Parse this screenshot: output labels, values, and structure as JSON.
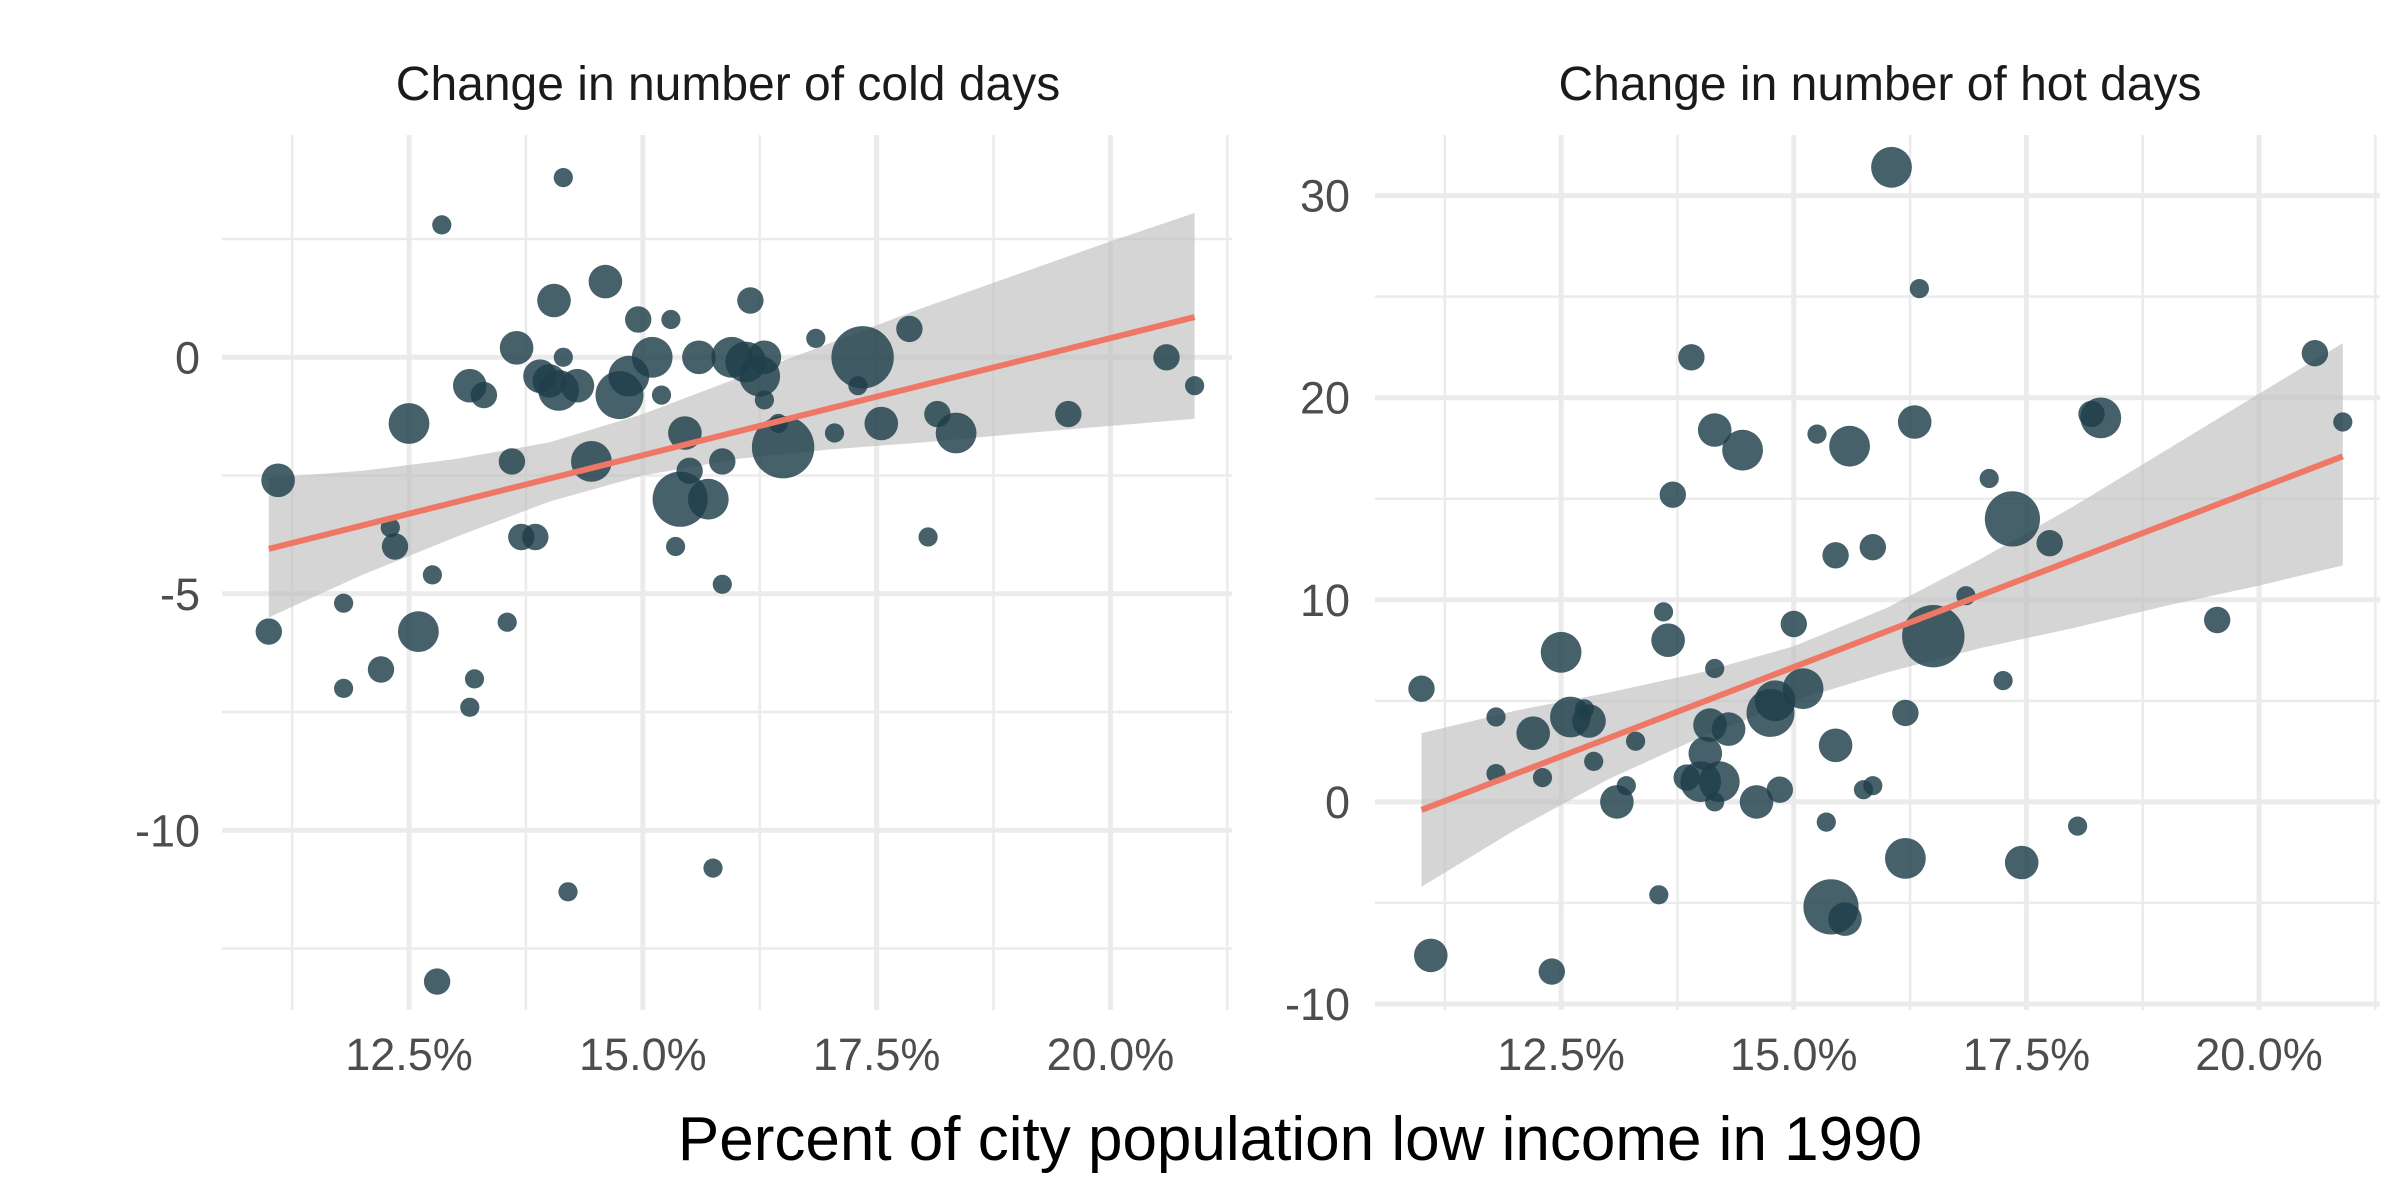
{
  "chart_data": {
    "type": "scatter",
    "xlabel": "Percent of city population low income in 1990",
    "colors": {
      "points": "#1f3e4b",
      "trend": "#ee7766",
      "band": "#bfbfbf"
    },
    "panels": [
      {
        "title": "Change in number of cold days",
        "xlim": [
          10.5,
          21.3
        ],
        "ylim": [
          -13.8,
          4.7
        ],
        "xticks": [
          12.5,
          15.0,
          17.5,
          20.0
        ],
        "xtick_labels": [
          "12.5%",
          "15.0%",
          "17.5%",
          "20.0%"
        ],
        "yticks": [
          0,
          -5,
          -10
        ],
        "ytick_labels": [
          "0",
          "-5",
          "-10"
        ],
        "trend": {
          "x": [
            11.0,
            20.9
          ],
          "y": [
            -4.05,
            0.85
          ]
        },
        "band": {
          "x": [
            11.0,
            12.0,
            13.0,
            14.0,
            15.0,
            16.0,
            17.0,
            18.0,
            19.0,
            20.0,
            20.9
          ],
          "lower": [
            -5.5,
            -4.6,
            -3.8,
            -3.05,
            -2.5,
            -2.15,
            -1.95,
            -1.8,
            -1.62,
            -1.45,
            -1.3
          ],
          "upper": [
            -2.55,
            -2.4,
            -2.15,
            -1.8,
            -1.2,
            -0.45,
            0.3,
            1.05,
            1.75,
            2.45,
            3.05
          ]
        },
        "points": [
          {
            "x": 11.0,
            "y": -5.8,
            "s": 2
          },
          {
            "x": 11.1,
            "y": -2.6,
            "s": 3
          },
          {
            "x": 11.8,
            "y": -5.2,
            "s": 1
          },
          {
            "x": 11.8,
            "y": -7.0,
            "s": 1
          },
          {
            "x": 12.2,
            "y": -6.6,
            "s": 2
          },
          {
            "x": 12.3,
            "y": -3.6,
            "s": 1
          },
          {
            "x": 12.35,
            "y": -4.0,
            "s": 2
          },
          {
            "x": 12.5,
            "y": -1.4,
            "s": 4
          },
          {
            "x": 12.6,
            "y": -5.8,
            "s": 4
          },
          {
            "x": 12.75,
            "y": -4.6,
            "s": 1
          },
          {
            "x": 12.8,
            "y": -13.2,
            "s": 2
          },
          {
            "x": 12.85,
            "y": 2.8,
            "s": 1
          },
          {
            "x": 13.15,
            "y": -0.6,
            "s": 3
          },
          {
            "x": 13.3,
            "y": -0.8,
            "s": 2
          },
          {
            "x": 13.2,
            "y": -6.8,
            "s": 1
          },
          {
            "x": 13.15,
            "y": -7.4,
            "s": 1
          },
          {
            "x": 13.55,
            "y": -5.6,
            "s": 1
          },
          {
            "x": 13.6,
            "y": -2.2,
            "s": 2
          },
          {
            "x": 13.65,
            "y": 0.2,
            "s": 3
          },
          {
            "x": 13.7,
            "y": -3.8,
            "s": 2
          },
          {
            "x": 13.85,
            "y": -3.8,
            "s": 2
          },
          {
            "x": 13.9,
            "y": -0.4,
            "s": 3
          },
          {
            "x": 14.0,
            "y": -0.5,
            "s": 3
          },
          {
            "x": 14.05,
            "y": 1.2,
            "s": 3
          },
          {
            "x": 14.1,
            "y": -0.7,
            "s": 4
          },
          {
            "x": 14.15,
            "y": 3.8,
            "s": 1
          },
          {
            "x": 14.15,
            "y": 0.0,
            "s": 1
          },
          {
            "x": 14.2,
            "y": -11.3,
            "s": 1
          },
          {
            "x": 14.3,
            "y": -0.6,
            "s": 3
          },
          {
            "x": 14.45,
            "y": -2.2,
            "s": 4
          },
          {
            "x": 14.6,
            "y": 1.6,
            "s": 3
          },
          {
            "x": 14.75,
            "y": -0.8,
            "s": 5
          },
          {
            "x": 14.85,
            "y": -0.4,
            "s": 4
          },
          {
            "x": 14.95,
            "y": 0.8,
            "s": 2
          },
          {
            "x": 15.1,
            "y": 0.0,
            "s": 4
          },
          {
            "x": 15.2,
            "y": -0.8,
            "s": 1
          },
          {
            "x": 15.3,
            "y": 0.8,
            "s": 1
          },
          {
            "x": 15.35,
            "y": -4.0,
            "s": 1
          },
          {
            "x": 15.4,
            "y": -3.0,
            "s": 6
          },
          {
            "x": 15.45,
            "y": -1.6,
            "s": 3
          },
          {
            "x": 15.5,
            "y": -2.4,
            "s": 2
          },
          {
            "x": 15.6,
            "y": 0.0,
            "s": 3
          },
          {
            "x": 15.7,
            "y": -3.0,
            "s": 4
          },
          {
            "x": 15.75,
            "y": -10.8,
            "s": 1
          },
          {
            "x": 15.85,
            "y": -2.2,
            "s": 2
          },
          {
            "x": 15.85,
            "y": -4.8,
            "s": 1
          },
          {
            "x": 15.95,
            "y": 0.0,
            "s": 4
          },
          {
            "x": 16.1,
            "y": -0.1,
            "s": 4
          },
          {
            "x": 16.15,
            "y": 1.2,
            "s": 2
          },
          {
            "x": 16.25,
            "y": -0.4,
            "s": 4
          },
          {
            "x": 16.3,
            "y": 0.0,
            "s": 3
          },
          {
            "x": 16.3,
            "y": -0.9,
            "s": 1
          },
          {
            "x": 16.45,
            "y": -1.4,
            "s": 1
          },
          {
            "x": 16.5,
            "y": -1.9,
            "s": 7
          },
          {
            "x": 16.85,
            "y": 0.4,
            "s": 1
          },
          {
            "x": 17.05,
            "y": -1.6,
            "s": 1
          },
          {
            "x": 17.3,
            "y": -0.6,
            "s": 1
          },
          {
            "x": 17.35,
            "y": 0.0,
            "s": 7
          },
          {
            "x": 17.55,
            "y": -1.4,
            "s": 3
          },
          {
            "x": 17.85,
            "y": 0.6,
            "s": 2
          },
          {
            "x": 18.05,
            "y": -3.8,
            "s": 1
          },
          {
            "x": 18.15,
            "y": -1.2,
            "s": 2
          },
          {
            "x": 18.35,
            "y": -1.6,
            "s": 4
          },
          {
            "x": 19.55,
            "y": -1.2,
            "s": 2
          },
          {
            "x": 20.6,
            "y": 0.0,
            "s": 2
          },
          {
            "x": 20.9,
            "y": -0.6,
            "s": 1
          }
        ]
      },
      {
        "title": "Change in number of hot days",
        "xlim": [
          10.5,
          21.3
        ],
        "ylim": [
          -10.3,
          33.0
        ],
        "xticks": [
          12.5,
          15.0,
          17.5,
          20.0
        ],
        "xtick_labels": [
          "12.5%",
          "15.0%",
          "17.5%",
          "20.0%"
        ],
        "yticks": [
          30,
          20,
          10,
          0,
          -10
        ],
        "ytick_labels": [
          "30",
          "20",
          "10",
          "0",
          "-10"
        ],
        "trend": {
          "x": [
            11.0,
            20.9
          ],
          "y": [
            -0.4,
            17.1
          ]
        },
        "band": {
          "x": [
            11.0,
            12.0,
            13.0,
            14.0,
            15.0,
            16.0,
            17.0,
            18.0,
            19.0,
            20.0,
            20.9
          ],
          "lower": [
            -4.2,
            -1.4,
            1.1,
            3.2,
            5.0,
            6.4,
            7.6,
            8.6,
            9.7,
            10.7,
            11.7
          ],
          "upper": [
            3.4,
            4.5,
            5.4,
            6.4,
            7.7,
            9.6,
            12.0,
            14.6,
            17.4,
            20.2,
            22.7
          ]
        },
        "points": [
          {
            "x": 11.0,
            "y": 5.6,
            "s": 2
          },
          {
            "x": 11.1,
            "y": -7.6,
            "s": 3
          },
          {
            "x": 11.8,
            "y": 4.2,
            "s": 1
          },
          {
            "x": 11.8,
            "y": 1.4,
            "s": 1
          },
          {
            "x": 12.2,
            "y": 3.4,
            "s": 3
          },
          {
            "x": 12.3,
            "y": 1.2,
            "s": 1
          },
          {
            "x": 12.4,
            "y": -8.4,
            "s": 2
          },
          {
            "x": 12.5,
            "y": 7.4,
            "s": 4
          },
          {
            "x": 12.6,
            "y": 4.2,
            "s": 4
          },
          {
            "x": 12.75,
            "y": 4.6,
            "s": 1
          },
          {
            "x": 12.8,
            "y": 4.0,
            "s": 3
          },
          {
            "x": 12.85,
            "y": 2.0,
            "s": 1
          },
          {
            "x": 13.1,
            "y": 0.0,
            "s": 3
          },
          {
            "x": 13.2,
            "y": 0.8,
            "s": 1
          },
          {
            "x": 13.3,
            "y": 3.0,
            "s": 1
          },
          {
            "x": 13.55,
            "y": -4.6,
            "s": 1
          },
          {
            "x": 13.6,
            "y": 9.4,
            "s": 1
          },
          {
            "x": 13.65,
            "y": 8.0,
            "s": 3
          },
          {
            "x": 13.7,
            "y": 15.2,
            "s": 2
          },
          {
            "x": 13.85,
            "y": 1.2,
            "s": 2
          },
          {
            "x": 13.9,
            "y": 22.0,
            "s": 2
          },
          {
            "x": 14.0,
            "y": 1.0,
            "s": 4
          },
          {
            "x": 14.05,
            "y": 2.4,
            "s": 3
          },
          {
            "x": 14.1,
            "y": 3.8,
            "s": 3
          },
          {
            "x": 14.15,
            "y": 6.6,
            "s": 1
          },
          {
            "x": 14.15,
            "y": 0.0,
            "s": 1
          },
          {
            "x": 14.15,
            "y": 18.4,
            "s": 3
          },
          {
            "x": 14.2,
            "y": 1.0,
            "s": 4
          },
          {
            "x": 14.3,
            "y": 3.6,
            "s": 3
          },
          {
            "x": 14.45,
            "y": 17.4,
            "s": 4
          },
          {
            "x": 14.6,
            "y": 0.0,
            "s": 3
          },
          {
            "x": 14.75,
            "y": 4.4,
            "s": 5
          },
          {
            "x": 14.8,
            "y": 5.0,
            "s": 4
          },
          {
            "x": 14.85,
            "y": 0.6,
            "s": 2
          },
          {
            "x": 15.0,
            "y": 8.8,
            "s": 2
          },
          {
            "x": 15.1,
            "y": 5.6,
            "s": 4
          },
          {
            "x": 15.25,
            "y": 18.2,
            "s": 1
          },
          {
            "x": 15.35,
            "y": -1.0,
            "s": 1
          },
          {
            "x": 15.4,
            "y": -5.2,
            "s": 6
          },
          {
            "x": 15.45,
            "y": 2.8,
            "s": 3
          },
          {
            "x": 15.45,
            "y": 12.2,
            "s": 2
          },
          {
            "x": 15.55,
            "y": -5.8,
            "s": 3
          },
          {
            "x": 15.6,
            "y": 17.6,
            "s": 4
          },
          {
            "x": 15.75,
            "y": 0.6,
            "s": 1
          },
          {
            "x": 15.85,
            "y": 12.6,
            "s": 2
          },
          {
            "x": 15.85,
            "y": 0.8,
            "s": 1
          },
          {
            "x": 16.05,
            "y": 31.4,
            "s": 4
          },
          {
            "x": 16.2,
            "y": -2.8,
            "s": 4
          },
          {
            "x": 16.2,
            "y": 4.4,
            "s": 2
          },
          {
            "x": 16.3,
            "y": 18.8,
            "s": 3
          },
          {
            "x": 16.35,
            "y": 25.4,
            "s": 1
          },
          {
            "x": 16.5,
            "y": 8.2,
            "s": 7
          },
          {
            "x": 16.85,
            "y": 10.2,
            "s": 1
          },
          {
            "x": 17.1,
            "y": 16.0,
            "s": 1
          },
          {
            "x": 17.25,
            "y": 6.0,
            "s": 1
          },
          {
            "x": 17.35,
            "y": 14.0,
            "s": 6
          },
          {
            "x": 17.45,
            "y": -3.0,
            "s": 3
          },
          {
            "x": 17.75,
            "y": 12.8,
            "s": 2
          },
          {
            "x": 18.05,
            "y": -1.2,
            "s": 1
          },
          {
            "x": 18.2,
            "y": 19.2,
            "s": 2
          },
          {
            "x": 18.3,
            "y": 19.0,
            "s": 4
          },
          {
            "x": 19.55,
            "y": 9.0,
            "s": 2
          },
          {
            "x": 20.6,
            "y": 22.2,
            "s": 2
          },
          {
            "x": 20.9,
            "y": 18.8,
            "s": 1
          }
        ]
      }
    ]
  }
}
